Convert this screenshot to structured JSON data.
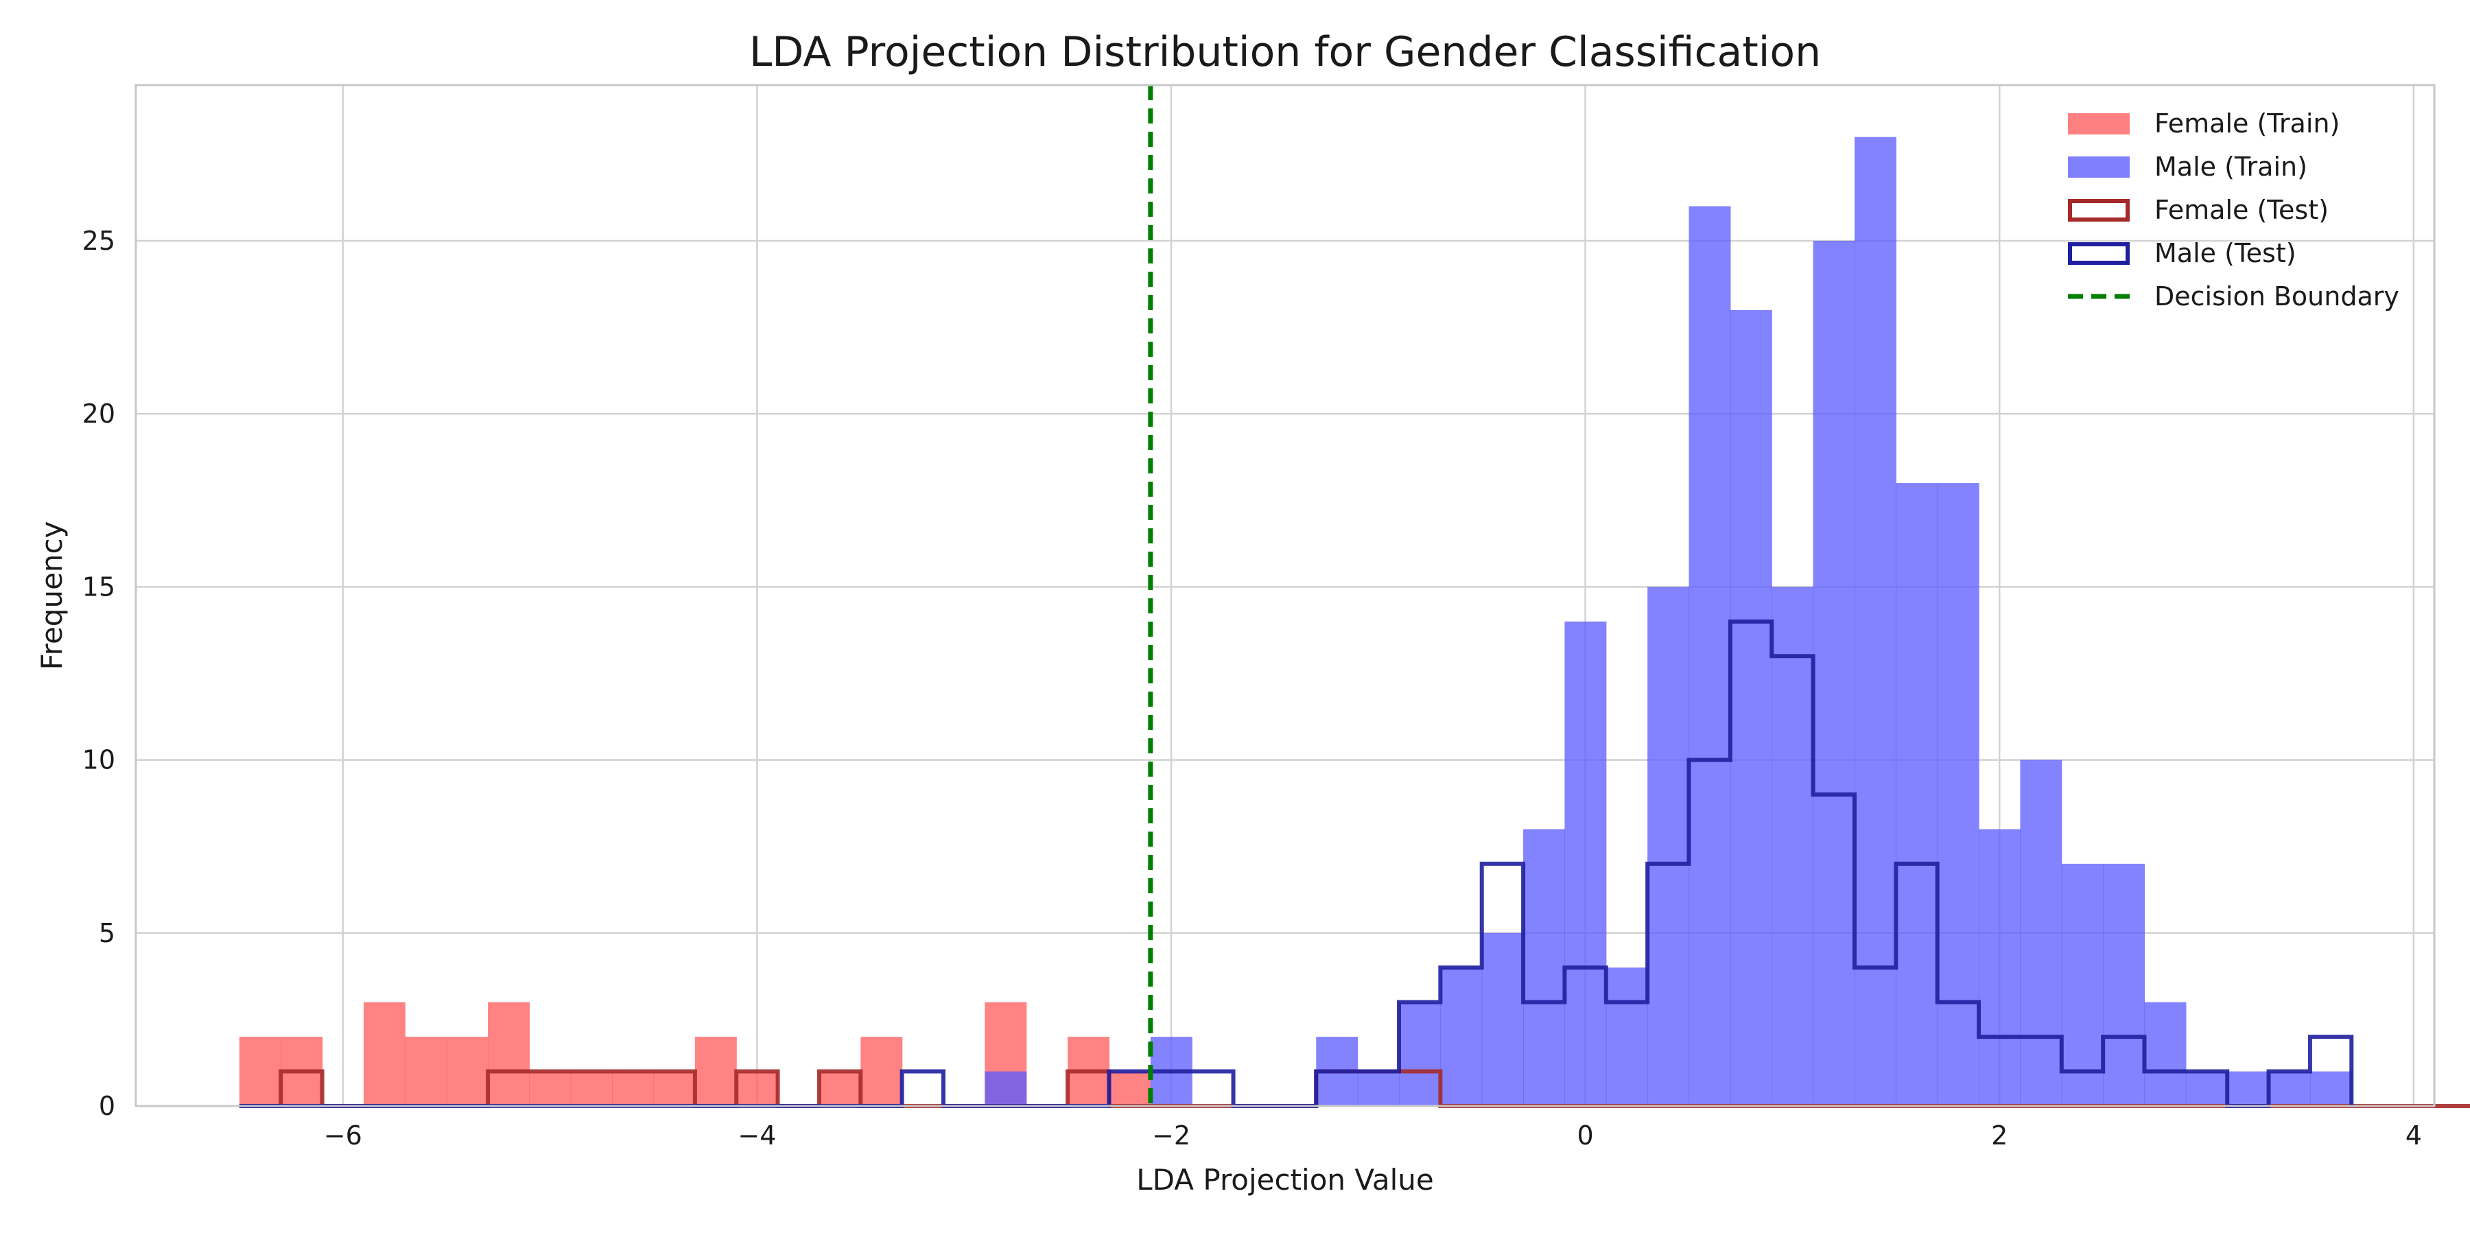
{
  "chart_data": {
    "type": "histogram",
    "title": "LDA Projection Distribution for Gender Classification",
    "xlabel": "LDA Projection Value",
    "ylabel": "Frequency",
    "xlim": [
      -7,
      4.1
    ],
    "ylim": [
      0,
      29.5
    ],
    "xticks": [
      -6,
      -4,
      -2,
      0,
      2,
      4
    ],
    "yticks": [
      0,
      5,
      10,
      15,
      20,
      25
    ],
    "grid": true,
    "legend_position": "top-right",
    "bin_start": -6.5,
    "bin_width": 0.2,
    "decision_boundary": -2.1,
    "series": [
      {
        "name": "Female (Train)",
        "style": "filled",
        "color": "#ff5a5a",
        "counts": [
          2,
          2,
          0,
          3,
          2,
          2,
          3,
          1,
          1,
          1,
          1,
          2,
          1,
          0,
          1,
          2,
          0,
          0,
          3,
          0,
          2,
          1,
          0,
          0,
          0,
          0,
          0,
          0,
          0,
          0,
          0,
          0,
          0,
          0,
          0,
          0,
          0,
          0,
          0,
          0,
          0,
          0,
          0,
          0,
          0,
          0,
          0,
          0,
          0,
          0
        ]
      },
      {
        "name": "Male (Train)",
        "style": "filled",
        "color": "#5a5aff",
        "counts": [
          0,
          0,
          0,
          0,
          0,
          0,
          0,
          0,
          0,
          0,
          0,
          0,
          0,
          0,
          0,
          0,
          0,
          0,
          1,
          0,
          0,
          0,
          2,
          0,
          0,
          0,
          2,
          1,
          3,
          4,
          5,
          8,
          14,
          4,
          15,
          26,
          23,
          15,
          25,
          28,
          18,
          18,
          8,
          10,
          7,
          7,
          3,
          1,
          1,
          1,
          1
        ]
      },
      {
        "name": "Female (Test)",
        "style": "step",
        "color": "#a52a2a",
        "counts": [
          0,
          1,
          0,
          0,
          0,
          0,
          1,
          1,
          1,
          1,
          1,
          0,
          1,
          0,
          1,
          0,
          0,
          0,
          0,
          0,
          1,
          0,
          0,
          0,
          0,
          0,
          1,
          1,
          1,
          0,
          0,
          0,
          0,
          0,
          0,
          0,
          0,
          0,
          0,
          0,
          0,
          0,
          0,
          0,
          0,
          0,
          0,
          0,
          0,
          0,
          0,
          0,
          0,
          0,
          0,
          0
        ]
      },
      {
        "name": "Male (Test)",
        "style": "step",
        "color": "#1f1fa0",
        "counts": [
          0,
          0,
          0,
          0,
          0,
          0,
          0,
          0,
          0,
          0,
          0,
          0,
          0,
          0,
          0,
          0,
          1,
          0,
          0,
          0,
          0,
          1,
          1,
          1,
          0,
          0,
          1,
          1,
          3,
          4,
          7,
          3,
          4,
          3,
          7,
          10,
          14,
          13,
          9,
          4,
          7,
          3,
          2,
          2,
          1,
          2,
          1,
          1,
          0,
          1,
          2
        ]
      }
    ],
    "legend": [
      {
        "name": "Female (Train)",
        "kind": "filled",
        "color": "#ff8080"
      },
      {
        "name": "Male (Train)",
        "kind": "filled",
        "color": "#8080ff"
      },
      {
        "name": "Female (Test)",
        "kind": "outline",
        "color": "#a52a2a"
      },
      {
        "name": "Male (Test)",
        "kind": "outline",
        "color": "#1f1fa0"
      },
      {
        "name": "Decision Boundary",
        "kind": "dashed",
        "color": "#008000"
      }
    ]
  }
}
